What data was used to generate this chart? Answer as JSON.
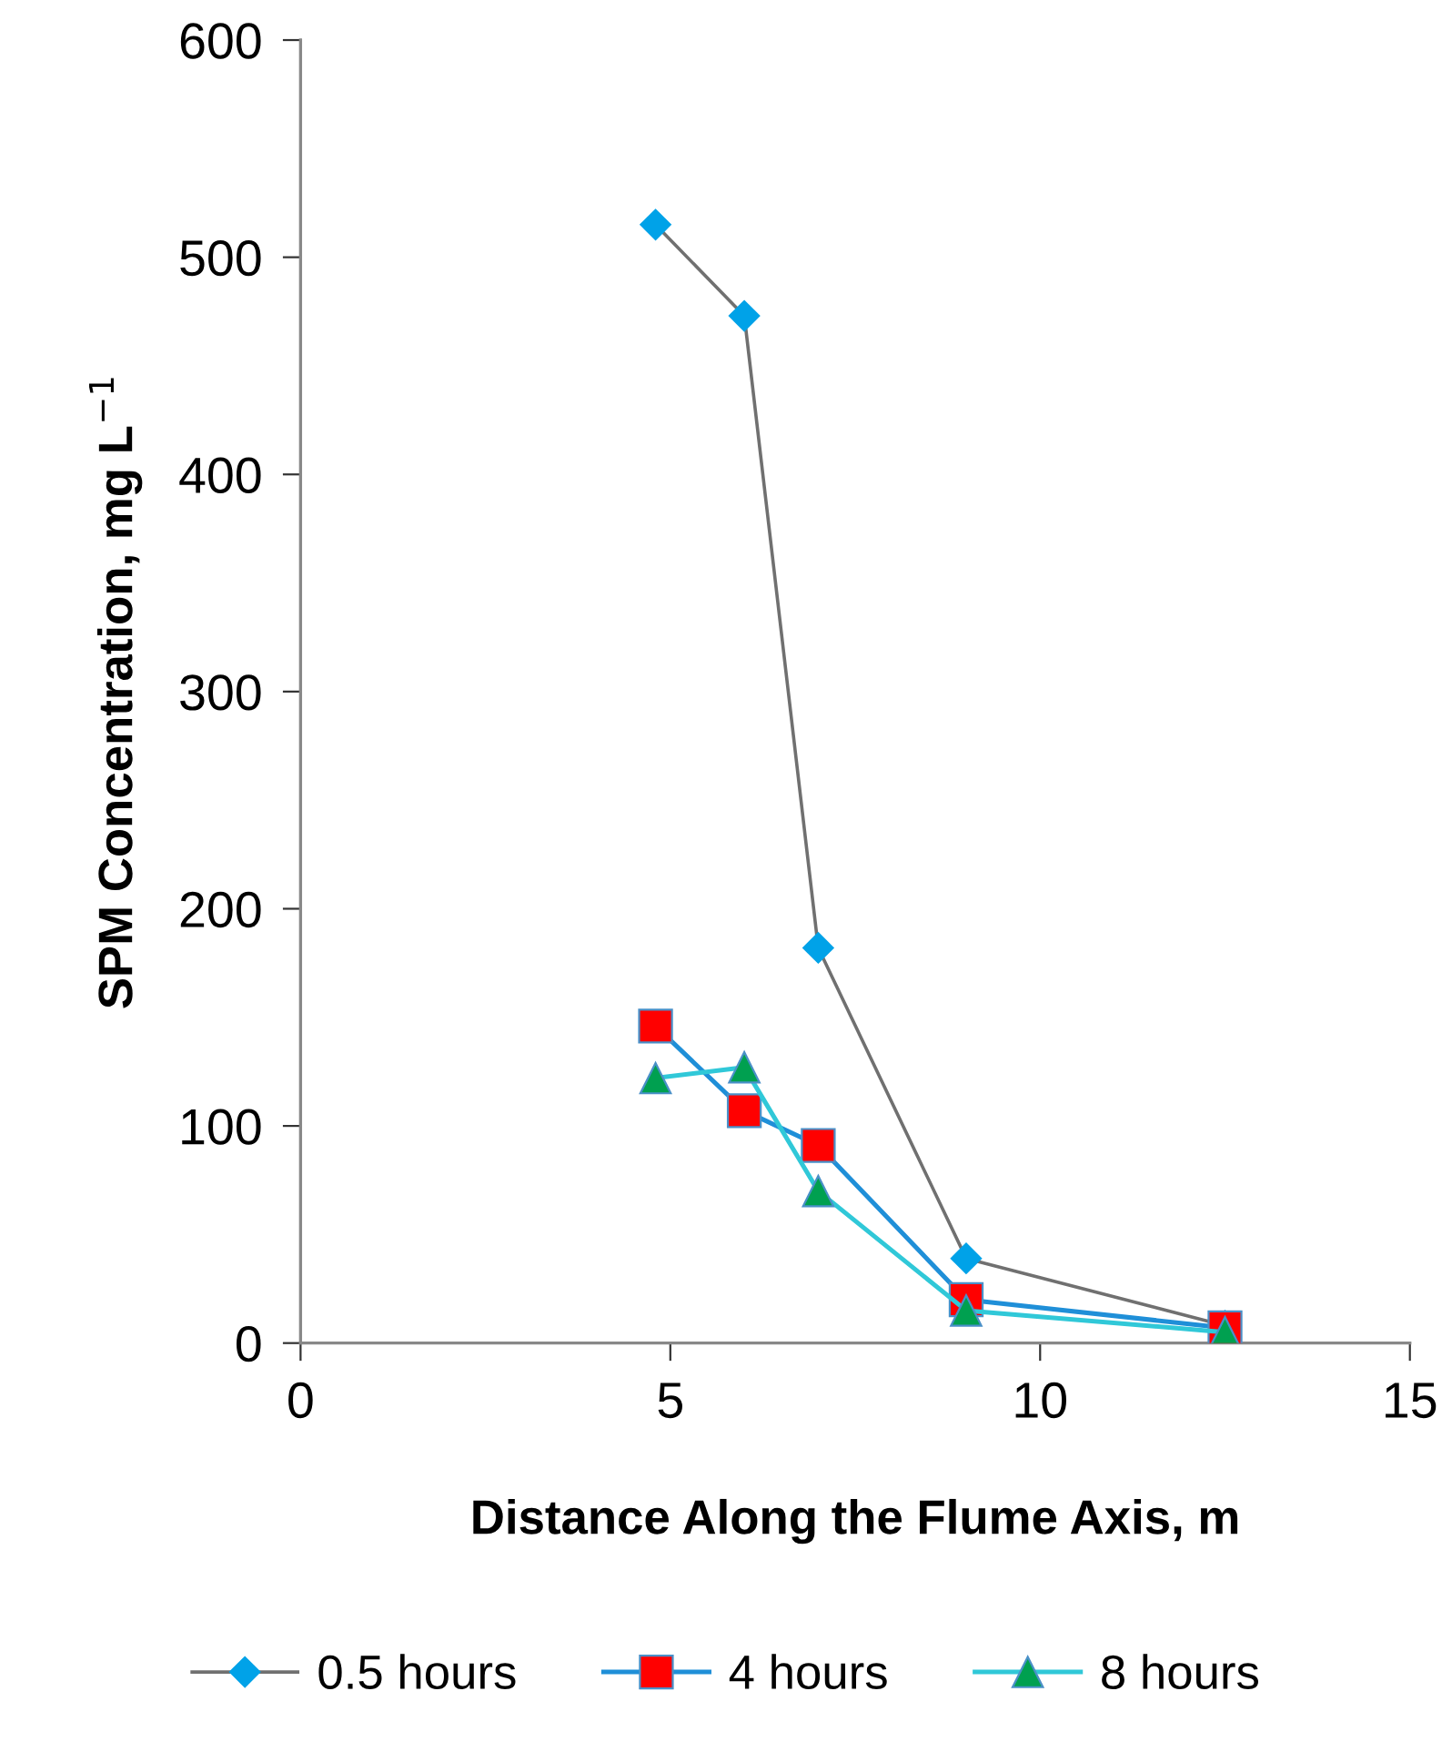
{
  "chart_data": {
    "type": "line",
    "xlabel": "Distance Along the Flume Axis, m",
    "ylabel": "SPM Concentration, mg L$^{−1}$",
    "xlim": [
      0,
      15
    ],
    "xticks": [
      0,
      5,
      10,
      15
    ],
    "ylim": [
      0,
      600
    ],
    "yticks": [
      0,
      100,
      200,
      300,
      400,
      500,
      600
    ],
    "grid": false,
    "legend": "bottom",
    "series": [
      {
        "name": "0.5 hours",
        "color": "#00a2e8",
        "marker": "diamond",
        "x": [
          4.8,
          6.0,
          7.0,
          9.0,
          12.5
        ],
        "values": [
          515,
          473,
          182,
          39,
          8
        ]
      },
      {
        "name": "4 hours",
        "color": "#ff0000",
        "marker": "square",
        "x": [
          4.8,
          6.0,
          7.0,
          9.0,
          12.5
        ],
        "values": [
          146,
          107,
          91,
          20,
          7
        ]
      },
      {
        "name": "8 hours",
        "color": "#00a050",
        "marker": "triangle",
        "x": [
          4.8,
          6.0,
          7.0,
          9.0,
          12.5
        ],
        "values": [
          122,
          127,
          70,
          15,
          5
        ]
      }
    ]
  }
}
